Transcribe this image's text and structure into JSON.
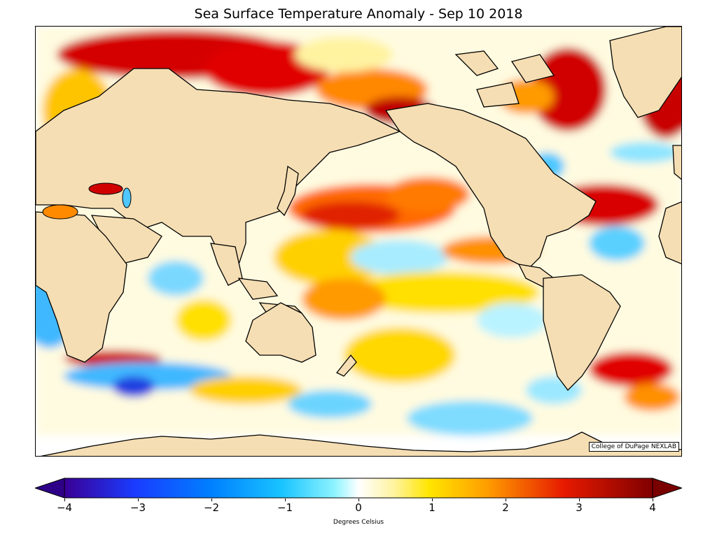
{
  "title": "Sea Surface Temperature Anomaly - Sep 10 2018",
  "credit": "College of DuPage NEXLAB",
  "colorbar": {
    "label": "Degrees Celsius",
    "ticks": [
      "−4",
      "−3",
      "−2",
      "−1",
      "0",
      "1",
      "2",
      "3",
      "4"
    ],
    "range": [
      -4,
      4
    ],
    "extend": "both"
  },
  "colors": {
    "land": "#f5deb3",
    "coast": "#000000",
    "warm_strong": "#c00000",
    "warm": "#ff9900",
    "warm_light": "#ffe600",
    "neutral": "#ffffff",
    "cool_light": "#a8f0ff",
    "cool": "#1aa6ff",
    "cool_strong": "#3300aa"
  }
}
